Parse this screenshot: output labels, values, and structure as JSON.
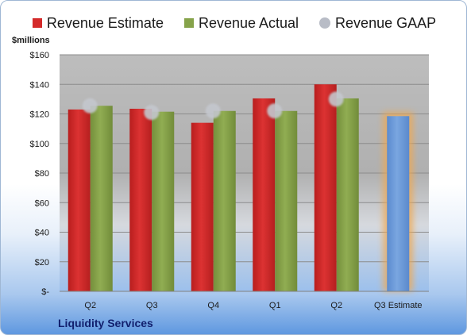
{
  "chart_data": {
    "type": "bar",
    "categories": [
      "Q2",
      "Q3",
      "Q4",
      "Q1",
      "Q2",
      "Q3 Estimate"
    ],
    "series": [
      {
        "name": "Revenue Estimate",
        "color": "#d42a2a",
        "values": [
          123,
          123.5,
          114,
          130.5,
          140,
          null
        ]
      },
      {
        "name": "Revenue Actual",
        "color": "#86a34a",
        "values": [
          125.5,
          121.5,
          122,
          122,
          130.5,
          null
        ]
      },
      {
        "name": "Revenue GAAP",
        "color": "#b8bcc6",
        "marker": "circle",
        "values": [
          125.5,
          121,
          122,
          122,
          130,
          null
        ]
      }
    ],
    "highlight": {
      "category": "Q3 Estimate",
      "value": 118.5,
      "color": "#6b9ad8",
      "glow": "#f0a850"
    },
    "ylabel": "$millions",
    "ylim": [
      0,
      160
    ],
    "yticks": [
      0,
      20,
      40,
      60,
      80,
      100,
      120,
      140,
      160
    ],
    "ytick_labels": [
      "$-",
      "$20",
      "$40",
      "$60",
      "$80",
      "$100",
      "$120",
      "$140",
      "$160"
    ],
    "grid": true,
    "legend_position": "top",
    "footer": "Liquidity Services"
  }
}
